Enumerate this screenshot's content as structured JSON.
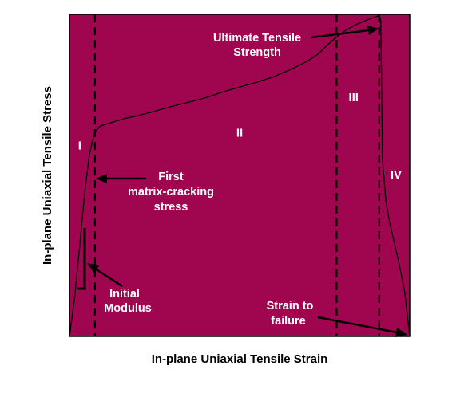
{
  "chart_data": {
    "type": "line",
    "title": "",
    "xlabel": "In-plane Uniaxial Tensile Strain",
    "ylabel": "In-plane Uniaxial Tensile Stress",
    "xlim": [
      0,
      100
    ],
    "ylim": [
      0,
      100
    ],
    "grid": false,
    "legend": "none",
    "colors": {
      "plot_background": "#A0064F",
      "curve": "#000000",
      "text_on_plot": "#FFFFFF"
    },
    "series": [
      {
        "values_xy": [
          [
            0,
            0
          ],
          [
            1.5,
            12
          ],
          [
            3,
            28
          ],
          [
            4.5,
            45
          ],
          [
            5.8,
            56
          ],
          [
            6.8,
            61
          ],
          [
            7.5,
            63.5
          ],
          [
            9,
            65.3
          ],
          [
            12,
            66.3
          ],
          [
            16,
            67.6
          ],
          [
            20,
            68.5
          ],
          [
            25,
            69.9
          ],
          [
            30,
            71.4
          ],
          [
            35,
            72.7
          ],
          [
            40,
            74.1
          ],
          [
            45,
            75.9
          ],
          [
            50,
            77.4
          ],
          [
            55,
            78.9
          ],
          [
            60,
            80.6
          ],
          [
            65,
            82.9
          ],
          [
            70,
            85.5
          ],
          [
            73,
            87.6
          ],
          [
            76,
            90.7
          ],
          [
            79,
            93.4
          ],
          [
            82,
            95.6
          ],
          [
            85,
            97.2
          ],
          [
            88,
            98.5
          ],
          [
            90.5,
            99.4
          ],
          [
            91,
            100
          ],
          [
            91.5,
            98
          ],
          [
            92,
            55
          ],
          [
            93,
            42
          ],
          [
            94,
            36
          ],
          [
            95.5,
            29
          ],
          [
            97,
            22
          ],
          [
            98.5,
            14
          ],
          [
            100,
            0
          ]
        ]
      }
    ],
    "region_boundaries_x": [
      7.5,
      78.5,
      91
    ],
    "regions": [
      {
        "label": "I",
        "x": 3,
        "y": 58
      },
      {
        "label": "II",
        "x": 50,
        "y": 62
      },
      {
        "label": "III",
        "x": 83.5,
        "y": 73
      },
      {
        "label": "IV",
        "x": 96,
        "y": 49
      }
    ],
    "annotations": [
      {
        "lines": [
          "Ultimate Tensile",
          "Strength"
        ],
        "points_to": [
          91,
          100
        ]
      },
      {
        "lines": [
          "First",
          "matrix-cracking",
          "stress"
        ],
        "points_to": [
          7.5,
          63.5
        ]
      },
      {
        "lines": [
          "Initial",
          "Modulus"
        ],
        "points_to": [
          4.5,
          45
        ]
      },
      {
        "lines": [
          "Strain to",
          "failure"
        ],
        "points_to": [
          100,
          0
        ]
      }
    ]
  }
}
